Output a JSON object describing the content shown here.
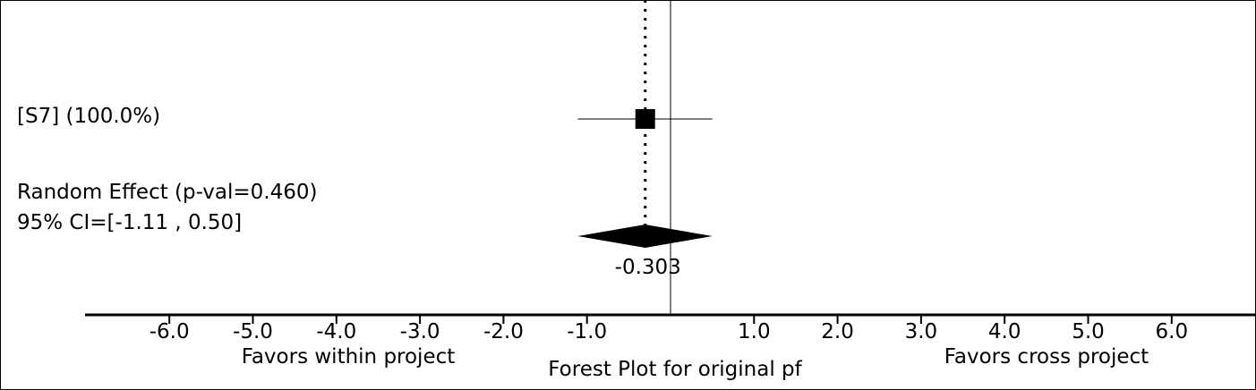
{
  "chart_data": {
    "type": "forest",
    "title": "Forest Plot for original pf",
    "left_label": "Favors within project",
    "right_label": "Favors cross project",
    "xlim": [
      -7.0,
      6.9
    ],
    "ticks": [
      {
        "value": -6,
        "label": "-6.0"
      },
      {
        "value": -5,
        "label": "-5.0"
      },
      {
        "value": -4,
        "label": "-4.0"
      },
      {
        "value": -3,
        "label": "-3.0"
      },
      {
        "value": -2,
        "label": "-2.0"
      },
      {
        "value": -1,
        "label": "-1.0"
      },
      {
        "value": 1,
        "label": "1.0"
      },
      {
        "value": 2,
        "label": "2.0"
      },
      {
        "value": 3,
        "label": "3.0"
      },
      {
        "value": 4,
        "label": "4.0"
      },
      {
        "value": 5,
        "label": "5.0"
      },
      {
        "value": 6,
        "label": "6.0"
      }
    ],
    "studies": [
      {
        "label": "[S7] (100.0%)",
        "estimate": -0.303,
        "ci_low": -1.11,
        "ci_high": 0.5,
        "weight": 100.0
      }
    ],
    "summary": {
      "label": "Random Effect (p-val=0.460)",
      "ci_label": "95% CI=[-1.11 , 0.50]",
      "estimate": -0.303,
      "estimate_label": "-0.303",
      "ci_low": -1.11,
      "ci_high": 0.5
    },
    "reference_line": 0
  }
}
